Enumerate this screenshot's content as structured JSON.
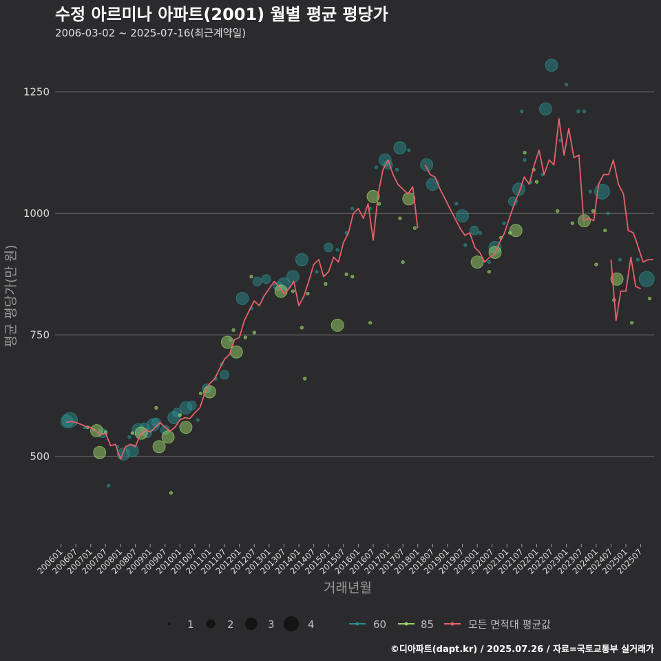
{
  "header": {
    "title": "수정 아르미나 아파트(2001) 월별 평균 평당가",
    "subtitle": "2006-03-02 ~ 2025-07-16(최근계약일)"
  },
  "footer": {
    "credit": "©디아파트(dapt.kr) / 2025.07.26 / 자료=국토교통부 실거래가"
  },
  "colors": {
    "background": "#2b2b2d",
    "area60": "#2a8c8c",
    "area85": "#9ad36a",
    "average": "#e8616a",
    "grid": "#6a6a6a"
  },
  "chart_data": {
    "type": "scatter",
    "title": "수정 아르미나 아파트(2001) 월별 평균 평당가",
    "xlabel": "거래년월",
    "ylabel": "평균 평당가(만 원)",
    "ylim": [
      320,
      1340
    ],
    "yticks": [
      500,
      750,
      1000,
      1250
    ],
    "xlim": [
      2005.8,
      2025.95
    ],
    "xticks": [
      "200601",
      "200607",
      "200701",
      "200707",
      "200801",
      "200807",
      "200901",
      "200907",
      "201001",
      "201007",
      "201101",
      "201107",
      "201201",
      "201207",
      "201301",
      "201307",
      "201401",
      "201407",
      "201501",
      "201507",
      "201601",
      "201607",
      "201701",
      "201707",
      "201801",
      "201807",
      "201901",
      "201907",
      "202001",
      "202007",
      "202101",
      "202107",
      "202201",
      "202207",
      "202301",
      "202307",
      "202401",
      "202407",
      "202501",
      "202507"
    ],
    "legend": {
      "size_title": "",
      "sizes": [
        1,
        2,
        3,
        4
      ],
      "series_labels": [
        "60",
        "85",
        "모든 면적대 평균값"
      ]
    },
    "series": [
      {
        "name": "60",
        "points": [
          [
            2006.2,
            572,
            3
          ],
          [
            2006.3,
            575,
            4
          ],
          [
            2006.8,
            560,
            1
          ],
          [
            2007.1,
            555,
            1
          ],
          [
            2007.4,
            548,
            2
          ],
          [
            2007.6,
            440,
            1
          ],
          [
            2007.9,
            520,
            1
          ],
          [
            2008.1,
            505,
            3
          ],
          [
            2008.3,
            540,
            1
          ],
          [
            2008.4,
            512,
            3
          ],
          [
            2008.6,
            555,
            3
          ],
          [
            2008.8,
            560,
            2
          ],
          [
            2008.9,
            548,
            2
          ],
          [
            2009.1,
            565,
            3
          ],
          [
            2009.2,
            570,
            2
          ],
          [
            2009.5,
            555,
            2
          ],
          [
            2009.8,
            580,
            3
          ],
          [
            2009.9,
            590,
            2
          ],
          [
            2010.2,
            600,
            3
          ],
          [
            2010.4,
            605,
            2
          ],
          [
            2010.6,
            575,
            1
          ],
          [
            2010.9,
            640,
            2
          ],
          [
            2011.2,
            660,
            1
          ],
          [
            2011.4,
            690,
            1
          ],
          [
            2011.5,
            668,
            2
          ],
          [
            2011.7,
            740,
            1
          ],
          [
            2012.1,
            825,
            3
          ],
          [
            2012.4,
            805,
            1
          ],
          [
            2012.6,
            860,
            2
          ],
          [
            2012.9,
            865,
            2
          ],
          [
            2013.3,
            850,
            2
          ],
          [
            2013.5,
            855,
            3
          ],
          [
            2013.8,
            870,
            3
          ],
          [
            2014.1,
            905,
            3
          ],
          [
            2014.6,
            880,
            1
          ],
          [
            2015.0,
            930,
            2
          ],
          [
            2015.3,
            925,
            1
          ],
          [
            2015.6,
            960,
            1
          ],
          [
            2015.8,
            1010,
            1
          ],
          [
            2016.4,
            1010,
            1
          ],
          [
            2016.6,
            1095,
            1
          ],
          [
            2016.9,
            1110,
            3
          ],
          [
            2017.0,
            1100,
            2
          ],
          [
            2017.3,
            1090,
            1
          ],
          [
            2017.4,
            1135,
            3
          ],
          [
            2017.7,
            1130,
            1
          ],
          [
            2018.3,
            1100,
            3
          ],
          [
            2018.5,
            1060,
            3
          ],
          [
            2019.3,
            1020,
            1
          ],
          [
            2019.5,
            995,
            3
          ],
          [
            2019.6,
            935,
            1
          ],
          [
            2019.9,
            965,
            2
          ],
          [
            2020.1,
            960,
            1
          ],
          [
            2020.4,
            900,
            1
          ],
          [
            2020.6,
            930,
            3
          ],
          [
            2020.9,
            980,
            1
          ],
          [
            2021.2,
            1025,
            2
          ],
          [
            2021.4,
            1050,
            3
          ],
          [
            2021.5,
            1210,
            1
          ],
          [
            2021.6,
            1110,
            1
          ],
          [
            2021.8,
            1065,
            1
          ],
          [
            2022.2,
            1080,
            1
          ],
          [
            2022.3,
            1215,
            3
          ],
          [
            2022.5,
            1305,
            3
          ],
          [
            2022.8,
            1150,
            1
          ],
          [
            2023.0,
            1265,
            1
          ],
          [
            2023.4,
            1210,
            1
          ],
          [
            2023.6,
            1210,
            1
          ],
          [
            2023.8,
            1045,
            1
          ],
          [
            2024.2,
            1045,
            4
          ],
          [
            2024.4,
            1000,
            1
          ],
          [
            2024.8,
            905,
            1
          ],
          [
            2025.4,
            905,
            1
          ],
          [
            2025.7,
            865,
            4
          ]
        ]
      },
      {
        "name": "85",
        "points": [
          [
            2006.9,
            560,
            1
          ],
          [
            2007.2,
            553,
            3
          ],
          [
            2007.3,
            508,
            3
          ],
          [
            2007.5,
            550,
            1
          ],
          [
            2008.4,
            548,
            1
          ],
          [
            2008.7,
            548,
            3
          ],
          [
            2009.2,
            600,
            1
          ],
          [
            2009.3,
            520,
            3
          ],
          [
            2009.6,
            540,
            3
          ],
          [
            2009.7,
            425,
            1
          ],
          [
            2010.0,
            585,
            1
          ],
          [
            2010.2,
            560,
            3
          ],
          [
            2010.7,
            630,
            1
          ],
          [
            2011.0,
            633,
            3
          ],
          [
            2011.6,
            735,
            3
          ],
          [
            2011.8,
            760,
            1
          ],
          [
            2011.9,
            715,
            3
          ],
          [
            2012.2,
            745,
            1
          ],
          [
            2012.4,
            870,
            1
          ],
          [
            2012.5,
            755,
            1
          ],
          [
            2013.4,
            840,
            3
          ],
          [
            2013.8,
            840,
            1
          ],
          [
            2014.1,
            765,
            1
          ],
          [
            2014.2,
            660,
            1
          ],
          [
            2014.3,
            835,
            1
          ],
          [
            2014.9,
            855,
            1
          ],
          [
            2015.3,
            770,
            3
          ],
          [
            2015.6,
            875,
            1
          ],
          [
            2015.8,
            870,
            1
          ],
          [
            2016.4,
            775,
            1
          ],
          [
            2016.5,
            1035,
            3
          ],
          [
            2016.7,
            1020,
            1
          ],
          [
            2017.4,
            990,
            1
          ],
          [
            2017.5,
            900,
            1
          ],
          [
            2017.7,
            1030,
            3
          ],
          [
            2017.9,
            970,
            1
          ],
          [
            2020.0,
            900,
            3
          ],
          [
            2020.4,
            880,
            1
          ],
          [
            2020.6,
            920,
            3
          ],
          [
            2020.8,
            950,
            1
          ],
          [
            2021.1,
            960,
            1
          ],
          [
            2021.3,
            965,
            3
          ],
          [
            2021.6,
            1125,
            1
          ],
          [
            2021.9,
            1090,
            1
          ],
          [
            2022.0,
            1065,
            1
          ],
          [
            2022.7,
            1005,
            1
          ],
          [
            2023.2,
            980,
            1
          ],
          [
            2023.6,
            985,
            3
          ],
          [
            2023.9,
            1005,
            1
          ],
          [
            2024.0,
            895,
            1
          ],
          [
            2024.3,
            965,
            1
          ],
          [
            2024.6,
            822,
            1
          ],
          [
            2024.7,
            865,
            3
          ],
          [
            2025.2,
            775,
            1
          ],
          [
            2025.8,
            825,
            1
          ]
        ]
      }
    ],
    "average_line": {
      "name": "모든 면적대 평균값",
      "segments": [
        [
          [
            2006.17,
            570
          ],
          [
            2006.33,
            572
          ],
          [
            2006.5,
            570
          ],
          [
            2006.67,
            566
          ],
          [
            2006.83,
            562
          ],
          [
            2007.0,
            560
          ],
          [
            2007.17,
            552
          ],
          [
            2007.33,
            545
          ],
          [
            2007.5,
            548
          ],
          [
            2007.67,
            522
          ],
          [
            2007.83,
            525
          ],
          [
            2008.0,
            495
          ],
          [
            2008.17,
            520
          ],
          [
            2008.33,
            525
          ],
          [
            2008.5,
            520
          ],
          [
            2008.67,
            545
          ],
          [
            2008.83,
            555
          ],
          [
            2009.0,
            550
          ],
          [
            2009.17,
            560
          ],
          [
            2009.33,
            570
          ],
          [
            2009.5,
            560
          ],
          [
            2009.67,
            552
          ],
          [
            2009.83,
            560
          ],
          [
            2010.0,
            575
          ],
          [
            2010.17,
            580
          ],
          [
            2010.33,
            578
          ],
          [
            2010.5,
            590
          ],
          [
            2010.67,
            600
          ],
          [
            2010.83,
            630
          ],
          [
            2011.0,
            650
          ],
          [
            2011.17,
            660
          ],
          [
            2011.33,
            680
          ],
          [
            2011.5,
            700
          ],
          [
            2011.67,
            710
          ],
          [
            2011.83,
            740
          ],
          [
            2012.0,
            745
          ],
          [
            2012.17,
            780
          ],
          [
            2012.33,
            800
          ],
          [
            2012.5,
            820
          ],
          [
            2012.67,
            810
          ],
          [
            2012.83,
            830
          ],
          [
            2013.0,
            845
          ],
          [
            2013.17,
            860
          ],
          [
            2013.33,
            850
          ],
          [
            2013.5,
            835
          ],
          [
            2013.67,
            845
          ],
          [
            2013.83,
            860
          ],
          [
            2014.0,
            810
          ],
          [
            2014.17,
            830
          ],
          [
            2014.33,
            860
          ],
          [
            2014.5,
            895
          ],
          [
            2014.67,
            905
          ],
          [
            2014.83,
            870
          ],
          [
            2015.0,
            880
          ],
          [
            2015.17,
            910
          ],
          [
            2015.33,
            900
          ],
          [
            2015.5,
            940
          ],
          [
            2015.67,
            960
          ],
          [
            2015.83,
            1000
          ],
          [
            2016.0,
            1010
          ],
          [
            2016.17,
            990
          ],
          [
            2016.33,
            1020
          ],
          [
            2016.5,
            945
          ],
          [
            2016.67,
            1040
          ],
          [
            2016.83,
            1090
          ],
          [
            2017.0,
            1110
          ],
          [
            2017.17,
            1080
          ],
          [
            2017.33,
            1060
          ],
          [
            2017.5,
            1050
          ],
          [
            2017.67,
            1040
          ],
          [
            2017.83,
            1055
          ],
          [
            2018.0,
            970
          ]
        ],
        [
          [
            2018.25,
            1100
          ],
          [
            2018.42,
            1080
          ],
          [
            2018.58,
            1075
          ],
          [
            2018.75,
            1050
          ],
          [
            2018.92,
            1030
          ],
          [
            2019.08,
            1010
          ],
          [
            2019.25,
            990
          ],
          [
            2019.42,
            970
          ],
          [
            2019.58,
            955
          ],
          [
            2019.75,
            960
          ],
          [
            2019.92,
            930
          ],
          [
            2020.08,
            920
          ],
          [
            2020.25,
            900
          ],
          [
            2020.42,
            910
          ],
          [
            2020.58,
            915
          ],
          [
            2020.75,
            940
          ],
          [
            2020.92,
            960
          ],
          [
            2021.08,
            990
          ],
          [
            2021.25,
            1020
          ],
          [
            2021.42,
            1045
          ],
          [
            2021.58,
            1075
          ],
          [
            2021.75,
            1060
          ],
          [
            2021.92,
            1100
          ],
          [
            2022.08,
            1130
          ],
          [
            2022.25,
            1080
          ],
          [
            2022.42,
            1110
          ],
          [
            2022.58,
            1100
          ],
          [
            2022.75,
            1195
          ],
          [
            2022.92,
            1120
          ],
          [
            2023.08,
            1175
          ],
          [
            2023.25,
            1115
          ],
          [
            2023.42,
            1120
          ],
          [
            2023.58,
            985
          ],
          [
            2023.75,
            990
          ],
          [
            2023.92,
            985
          ],
          [
            2024.08,
            1060
          ],
          [
            2024.25,
            1080
          ],
          [
            2024.42,
            1080
          ],
          [
            2024.58,
            1110
          ],
          [
            2024.75,
            1060
          ],
          [
            2024.92,
            1040
          ],
          [
            2025.08,
            965
          ],
          [
            2025.25,
            960
          ],
          [
            2025.42,
            930
          ],
          [
            2025.58,
            900
          ],
          [
            2025.75,
            905
          ],
          [
            2025.92,
            905
          ]
        ],
        [
          [
            2024.5,
            905
          ],
          [
            2024.67,
            780
          ],
          [
            2024.83,
            840
          ],
          [
            2025.0,
            840
          ],
          [
            2025.17,
            910
          ],
          [
            2025.33,
            850
          ],
          [
            2025.5,
            845
          ]
        ]
      ]
    }
  }
}
